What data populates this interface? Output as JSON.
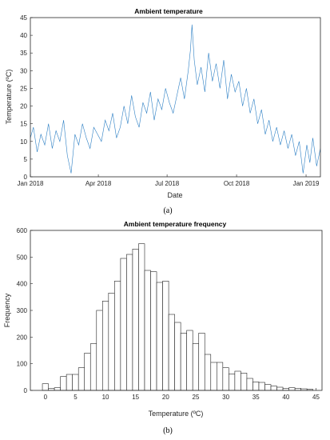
{
  "chart_data": [
    {
      "type": "line",
      "title": "Ambient temperature",
      "xlabel": "Date",
      "ylabel": "Temperature (ºC)",
      "sublabel": "(a)",
      "xlim": [
        "2018-01-01",
        "2019-01-20"
      ],
      "ylim": [
        0,
        45
      ],
      "x_ticks": [
        {
          "date": "2018-01-01",
          "label": "Jan 2018"
        },
        {
          "date": "2018-04-01",
          "label": "Apr 2018"
        },
        {
          "date": "2018-07-01",
          "label": "Jul 2018"
        },
        {
          "date": "2018-10-01",
          "label": "Oct 2018"
        },
        {
          "date": "2019-01-01",
          "label": "Jan 2019"
        }
      ],
      "y_ticks": [
        0,
        5,
        10,
        15,
        20,
        25,
        30,
        35,
        40,
        45
      ],
      "series_color": "#2c7fc4",
      "series": [
        {
          "values": [
            [
              "2018-01-01",
              11
            ],
            [
              "2018-01-05",
              14
            ],
            [
              "2018-01-10",
              7
            ],
            [
              "2018-01-15",
              12
            ],
            [
              "2018-01-20",
              9
            ],
            [
              "2018-01-25",
              15
            ],
            [
              "2018-01-30",
              8
            ],
            [
              "2018-02-04",
              13
            ],
            [
              "2018-02-09",
              10
            ],
            [
              "2018-02-14",
              16
            ],
            [
              "2018-02-19",
              6
            ],
            [
              "2018-02-24",
              1
            ],
            [
              "2018-03-01",
              12
            ],
            [
              "2018-03-06",
              9
            ],
            [
              "2018-03-11",
              15
            ],
            [
              "2018-03-16",
              11
            ],
            [
              "2018-03-21",
              8
            ],
            [
              "2018-03-26",
              14
            ],
            [
              "2018-03-31",
              12
            ],
            [
              "2018-04-05",
              10
            ],
            [
              "2018-04-10",
              16
            ],
            [
              "2018-04-15",
              13
            ],
            [
              "2018-04-20",
              18
            ],
            [
              "2018-04-25",
              11
            ],
            [
              "2018-04-30",
              14
            ],
            [
              "2018-05-05",
              20
            ],
            [
              "2018-05-10",
              15
            ],
            [
              "2018-05-15",
              23
            ],
            [
              "2018-05-20",
              17
            ],
            [
              "2018-05-25",
              14
            ],
            [
              "2018-05-30",
              21
            ],
            [
              "2018-06-04",
              18
            ],
            [
              "2018-06-09",
              24
            ],
            [
              "2018-06-14",
              16
            ],
            [
              "2018-06-19",
              22
            ],
            [
              "2018-06-24",
              19
            ],
            [
              "2018-06-29",
              25
            ],
            [
              "2018-07-04",
              21
            ],
            [
              "2018-07-09",
              18
            ],
            [
              "2018-07-14",
              23
            ],
            [
              "2018-07-19",
              28
            ],
            [
              "2018-07-24",
              22
            ],
            [
              "2018-07-29",
              30
            ],
            [
              "2018-08-01",
              36
            ],
            [
              "2018-08-03",
              43
            ],
            [
              "2018-08-06",
              33
            ],
            [
              "2018-08-10",
              26
            ],
            [
              "2018-08-15",
              31
            ],
            [
              "2018-08-20",
              24
            ],
            [
              "2018-08-25",
              35
            ],
            [
              "2018-08-30",
              27
            ],
            [
              "2018-09-04",
              32
            ],
            [
              "2018-09-09",
              25
            ],
            [
              "2018-09-14",
              33
            ],
            [
              "2018-09-19",
              22
            ],
            [
              "2018-09-24",
              29
            ],
            [
              "2018-09-29",
              24
            ],
            [
              "2018-10-04",
              27
            ],
            [
              "2018-10-09",
              20
            ],
            [
              "2018-10-14",
              25
            ],
            [
              "2018-10-19",
              18
            ],
            [
              "2018-10-24",
              22
            ],
            [
              "2018-10-29",
              15
            ],
            [
              "2018-11-03",
              19
            ],
            [
              "2018-11-08",
              12
            ],
            [
              "2018-11-13",
              16
            ],
            [
              "2018-11-18",
              10
            ],
            [
              "2018-11-23",
              14
            ],
            [
              "2018-11-28",
              9
            ],
            [
              "2018-12-03",
              13
            ],
            [
              "2018-12-08",
              8
            ],
            [
              "2018-12-13",
              12
            ],
            [
              "2018-12-18",
              6
            ],
            [
              "2018-12-23",
              10
            ],
            [
              "2018-12-28",
              1
            ],
            [
              "2019-01-02",
              9
            ],
            [
              "2019-01-06",
              4
            ],
            [
              "2019-01-10",
              11
            ],
            [
              "2019-01-15",
              3
            ],
            [
              "2019-01-20",
              8
            ]
          ]
        }
      ]
    },
    {
      "type": "bar",
      "title": "Ambient temperature frequency",
      "xlabel": "Temperature (ºC)",
      "ylabel": "Frequency",
      "sublabel": "(b)",
      "xlim": [
        -2.5,
        46
      ],
      "ylim": [
        0,
        600
      ],
      "x_ticks": [
        0,
        5,
        10,
        15,
        20,
        25,
        30,
        35,
        40,
        45
      ],
      "y_ticks": [
        0,
        100,
        200,
        300,
        400,
        500,
        600
      ],
      "bin_width": 1,
      "bin_centers": [
        0,
        1,
        2,
        3,
        4,
        5,
        6,
        7,
        8,
        9,
        10,
        11,
        12,
        13,
        14,
        15,
        16,
        17,
        18,
        19,
        20,
        21,
        22,
        23,
        24,
        25,
        26,
        27,
        28,
        29,
        30,
        31,
        32,
        33,
        34,
        35,
        36,
        37,
        38,
        39,
        40,
        41,
        42,
        43,
        44
      ],
      "values": [
        25,
        8,
        10,
        52,
        60,
        60,
        85,
        140,
        175,
        300,
        335,
        365,
        410,
        495,
        510,
        530,
        550,
        450,
        445,
        405,
        410,
        285,
        255,
        215,
        225,
        175,
        215,
        135,
        105,
        105,
        85,
        62,
        72,
        65,
        45,
        32,
        30,
        22,
        16,
        12,
        8,
        10,
        8,
        6,
        4
      ]
    }
  ]
}
